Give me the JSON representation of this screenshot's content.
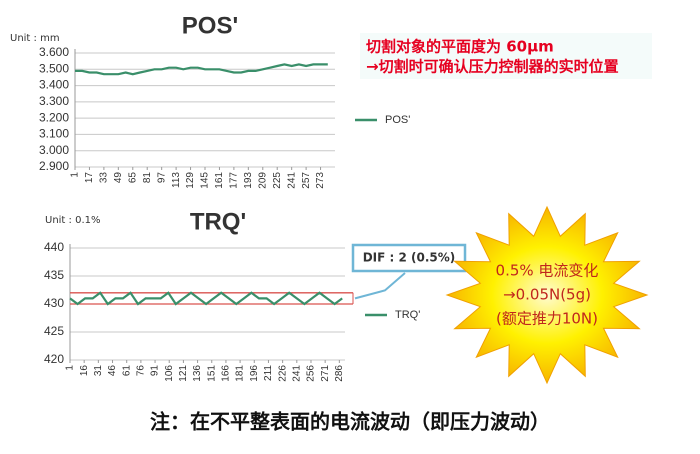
{
  "chart_data": [
    {
      "type": "line",
      "title": "POS'",
      "unit_label": "Unit : mm",
      "x": [
        1,
        9,
        17,
        25,
        33,
        41,
        49,
        57,
        65,
        73,
        81,
        89,
        97,
        105,
        113,
        121,
        129,
        137,
        145,
        153,
        161,
        169,
        177,
        185,
        193,
        201,
        209,
        217,
        225,
        233,
        241,
        249,
        257,
        265,
        273,
        281
      ],
      "series": [
        {
          "name": "POS'",
          "color": "#3a8f6a",
          "values": [
            3.49,
            3.49,
            3.48,
            3.48,
            3.47,
            3.47,
            3.47,
            3.48,
            3.47,
            3.48,
            3.49,
            3.5,
            3.5,
            3.51,
            3.51,
            3.5,
            3.51,
            3.51,
            3.5,
            3.5,
            3.5,
            3.49,
            3.48,
            3.48,
            3.49,
            3.49,
            3.5,
            3.51,
            3.52,
            3.53,
            3.52,
            3.53,
            3.52,
            3.53,
            3.53,
            3.53
          ]
        }
      ],
      "xlim": [
        1,
        289
      ],
      "xticks": [
        1,
        17,
        33,
        49,
        65,
        81,
        97,
        113,
        129,
        145,
        161,
        177,
        193,
        209,
        225,
        241,
        257,
        273
      ],
      "ylim": [
        2.9,
        3.6
      ],
      "yticks": [
        {
          "value": 2.9,
          "label": "2.900"
        },
        {
          "value": 3.0,
          "label": "3.000"
        },
        {
          "value": 3.1,
          "label": "3.100"
        },
        {
          "value": 3.2,
          "label": "3.200"
        },
        {
          "value": 3.3,
          "label": "3.300"
        },
        {
          "value": 3.4,
          "label": "3.400"
        },
        {
          "value": 3.5,
          "label": "3.500"
        },
        {
          "value": 3.6,
          "label": "3.600"
        }
      ],
      "grid": true,
      "legend": "right",
      "note_lines": [
        "切割对象的平面度为 60μm",
        "→切割时可确认压力控制器的实时位置"
      ]
    },
    {
      "type": "line",
      "title": "TRQ'",
      "unit_label": "Unit : 0.1%",
      "x": [
        1,
        9,
        17,
        25,
        33,
        41,
        49,
        57,
        65,
        73,
        81,
        89,
        97,
        105,
        113,
        121,
        129,
        137,
        145,
        153,
        161,
        169,
        177,
        185,
        193,
        201,
        209,
        217,
        225,
        233,
        241,
        249,
        257,
        265,
        273,
        281,
        289
      ],
      "series": [
        {
          "name": "TRQ'",
          "color": "#3a8f6a",
          "values": [
            431,
            430,
            431,
            431,
            432,
            430,
            431,
            431,
            432,
            430,
            431,
            431,
            431,
            432,
            430,
            431,
            432,
            431,
            430,
            431,
            432,
            431,
            430,
            431,
            432,
            431,
            431,
            430,
            431,
            432,
            431,
            430,
            431,
            432,
            431,
            430,
            431
          ]
        }
      ],
      "xlim": [
        1,
        292
      ],
      "xticks": [
        1,
        16,
        31,
        46,
        61,
        76,
        91,
        106,
        121,
        136,
        151,
        166,
        181,
        196,
        211,
        226,
        241,
        256,
        271,
        286
      ],
      "ylim": [
        420,
        440
      ],
      "yticks": [
        420,
        425,
        430,
        435,
        440
      ],
      "grid": true,
      "legend": "right",
      "ref_lines": [
        432,
        430
      ],
      "ref_color": "#d9534f",
      "dif_label": "DIF : 2 (0.5%)",
      "burst_lines": [
        "0.5% 电流变化",
        "→0.05N(5g)",
        "(额定推力10N)"
      ]
    }
  ],
  "caption": "注：在不平整表面的电流波动（即压力波动）"
}
